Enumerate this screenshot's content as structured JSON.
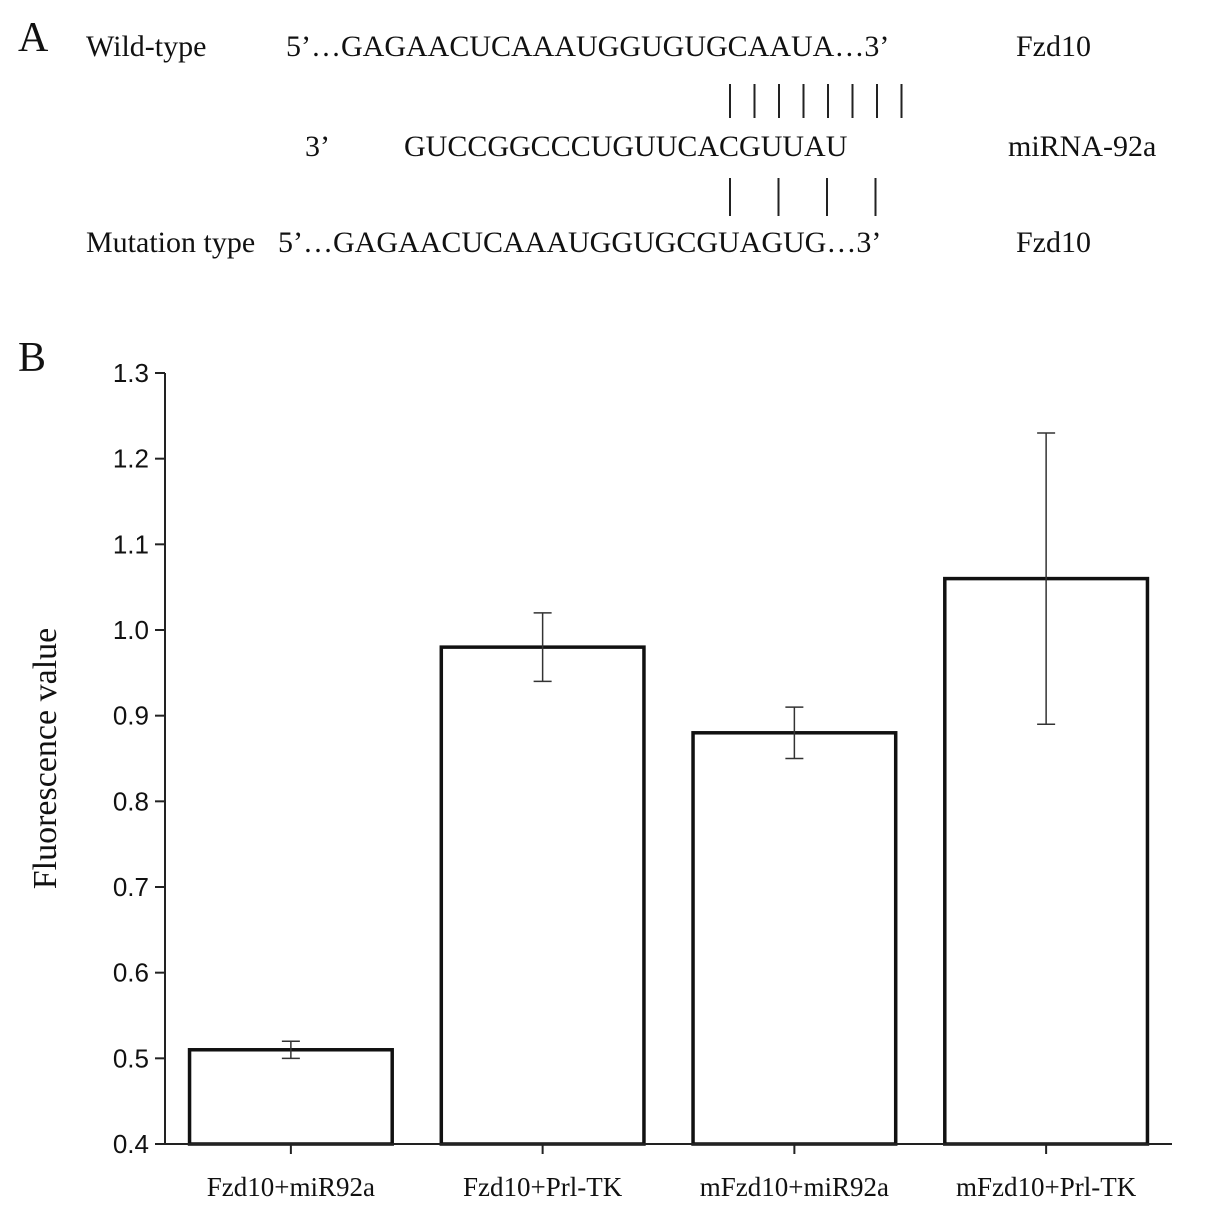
{
  "panel_a": {
    "letter": "A",
    "wild_label": "Wild-type",
    "wild_seq": "5’…GAGAACUCAAAUGGUGUGCAAUA…3’",
    "wild_gene": "Fzd10",
    "mirna_prime": "3’",
    "mirna_seq": "GUCCGGCCCUGUUCACGUUAU",
    "mirna_name": "miRNA-92a",
    "mut_label": "Mutation type",
    "mut_seq": "5’…GAGAACUCAAAUGGUGCGUAGUG…3’",
    "mut_gene": "Fzd10",
    "top_bond_count": 8,
    "bottom_bond_count": 4
  },
  "panel_b": {
    "letter": "B"
  },
  "chart_data": {
    "type": "bar",
    "ylabel": "Fluorescence value",
    "xlabel": "",
    "ylim": [
      0.4,
      1.3
    ],
    "yticks": [
      "0.4",
      "0.5",
      "0.6",
      "0.7",
      "0.8",
      "0.9",
      "1.0",
      "1.1",
      "1.2",
      "1.3"
    ],
    "categories": [
      "Fzd10+miR92a",
      "Fzd10+Prl-TK",
      "mFzd10+miR92a",
      "mFzd10+Prl-TK"
    ],
    "values": [
      0.51,
      0.98,
      0.88,
      1.06
    ],
    "errors": [
      0.01,
      0.04,
      0.03,
      0.17
    ],
    "grid": false,
    "legend": "none"
  }
}
